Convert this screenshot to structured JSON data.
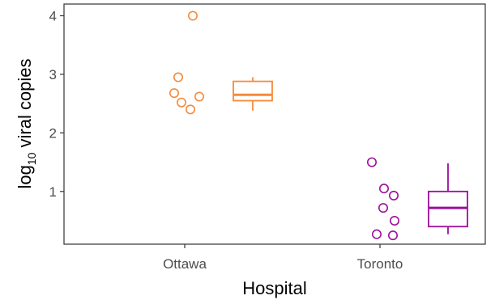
{
  "chart_data": {
    "type": "scatter",
    "xlabel": "Hospital",
    "ylabel_main": "log",
    "ylabel_sub": "10",
    "ylabel_rest": " viral copies",
    "ylim": [
      0.1,
      4.2
    ],
    "yticks": [
      1,
      2,
      3,
      4
    ],
    "grid": false,
    "legend": "none",
    "groups": [
      {
        "name": "Ottawa",
        "color": "#f58a3b",
        "points": [
          4.0,
          2.95,
          2.68,
          2.52,
          2.62,
          2.4
        ],
        "box": {
          "min": 2.38,
          "q1": 2.55,
          "median": 2.65,
          "q3": 2.88,
          "max": 2.95
        }
      },
      {
        "name": "Toronto",
        "color": "#9b0f9b",
        "points": [
          1.5,
          1.05,
          0.93,
          0.72,
          0.5,
          0.27,
          0.25
        ],
        "box": {
          "min": 0.27,
          "q1": 0.4,
          "median": 0.72,
          "q3": 1.0,
          "max": 1.48
        }
      }
    ]
  }
}
